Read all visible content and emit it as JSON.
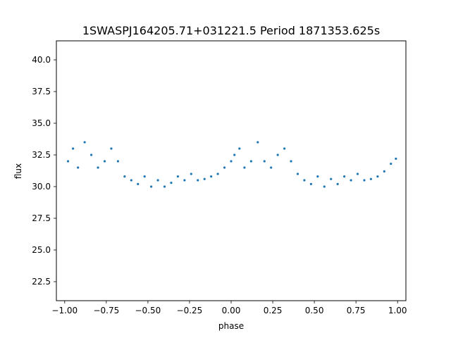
{
  "chart_data": {
    "type": "scatter",
    "title": "1SWASPJ164205.71+031221.5 Period 1871353.625s",
    "xlabel": "phase",
    "ylabel": "flux",
    "xlim": [
      -1.05,
      1.05
    ],
    "ylim": [
      21.0,
      41.5
    ],
    "xticks": [
      -1.0,
      -0.75,
      -0.5,
      -0.25,
      0.0,
      0.25,
      0.5,
      0.75,
      1.0
    ],
    "xtick_labels": [
      "−1.00",
      "−0.75",
      "−0.50",
      "−0.25",
      "0.00",
      "0.25",
      "0.50",
      "0.75",
      "1.00"
    ],
    "yticks": [
      22.5,
      25.0,
      27.5,
      30.0,
      32.5,
      35.0,
      37.5,
      40.0
    ],
    "ytick_labels": [
      "22.5",
      "25.0",
      "27.5",
      "30.0",
      "32.5",
      "35.0",
      "37.5",
      "40.0"
    ],
    "grid": false,
    "marker_color": "#1f77b4",
    "series": [
      {
        "x": [
          -0.98,
          -0.95,
          -0.92,
          -0.88,
          -0.84,
          -0.8,
          -0.76,
          -0.72,
          -0.68,
          -0.64,
          -0.6,
          -0.56,
          -0.52,
          -0.48,
          -0.44,
          -0.4,
          -0.36,
          -0.32,
          -0.28,
          -0.24,
          -0.2,
          -0.16,
          -0.12,
          -0.08,
          -0.04,
          0.0,
          0.02,
          0.05,
          0.08,
          0.12,
          0.16,
          0.2,
          0.24,
          0.28,
          0.32,
          0.36,
          0.4,
          0.44,
          0.48,
          0.52,
          0.56,
          0.6,
          0.64,
          0.68,
          0.72,
          0.76,
          0.8,
          0.84,
          0.88,
          0.92,
          0.96,
          0.99
        ],
        "y": [
          32.0,
          33.0,
          31.5,
          33.5,
          32.5,
          31.5,
          32.0,
          33.0,
          32.0,
          30.8,
          30.5,
          30.2,
          30.8,
          30.0,
          30.5,
          30.0,
          30.3,
          30.8,
          30.5,
          31.0,
          30.5,
          30.6,
          30.8,
          31.0,
          31.5,
          32.0,
          32.5,
          33.0,
          31.5,
          32.0,
          33.5,
          32.0,
          31.5,
          32.5,
          33.0,
          32.0,
          31.0,
          30.5,
          30.2,
          30.8,
          30.0,
          30.6,
          30.2,
          30.8,
          30.5,
          31.0,
          30.5,
          30.6,
          30.8,
          31.2,
          31.8,
          32.2
        ]
      }
    ]
  }
}
